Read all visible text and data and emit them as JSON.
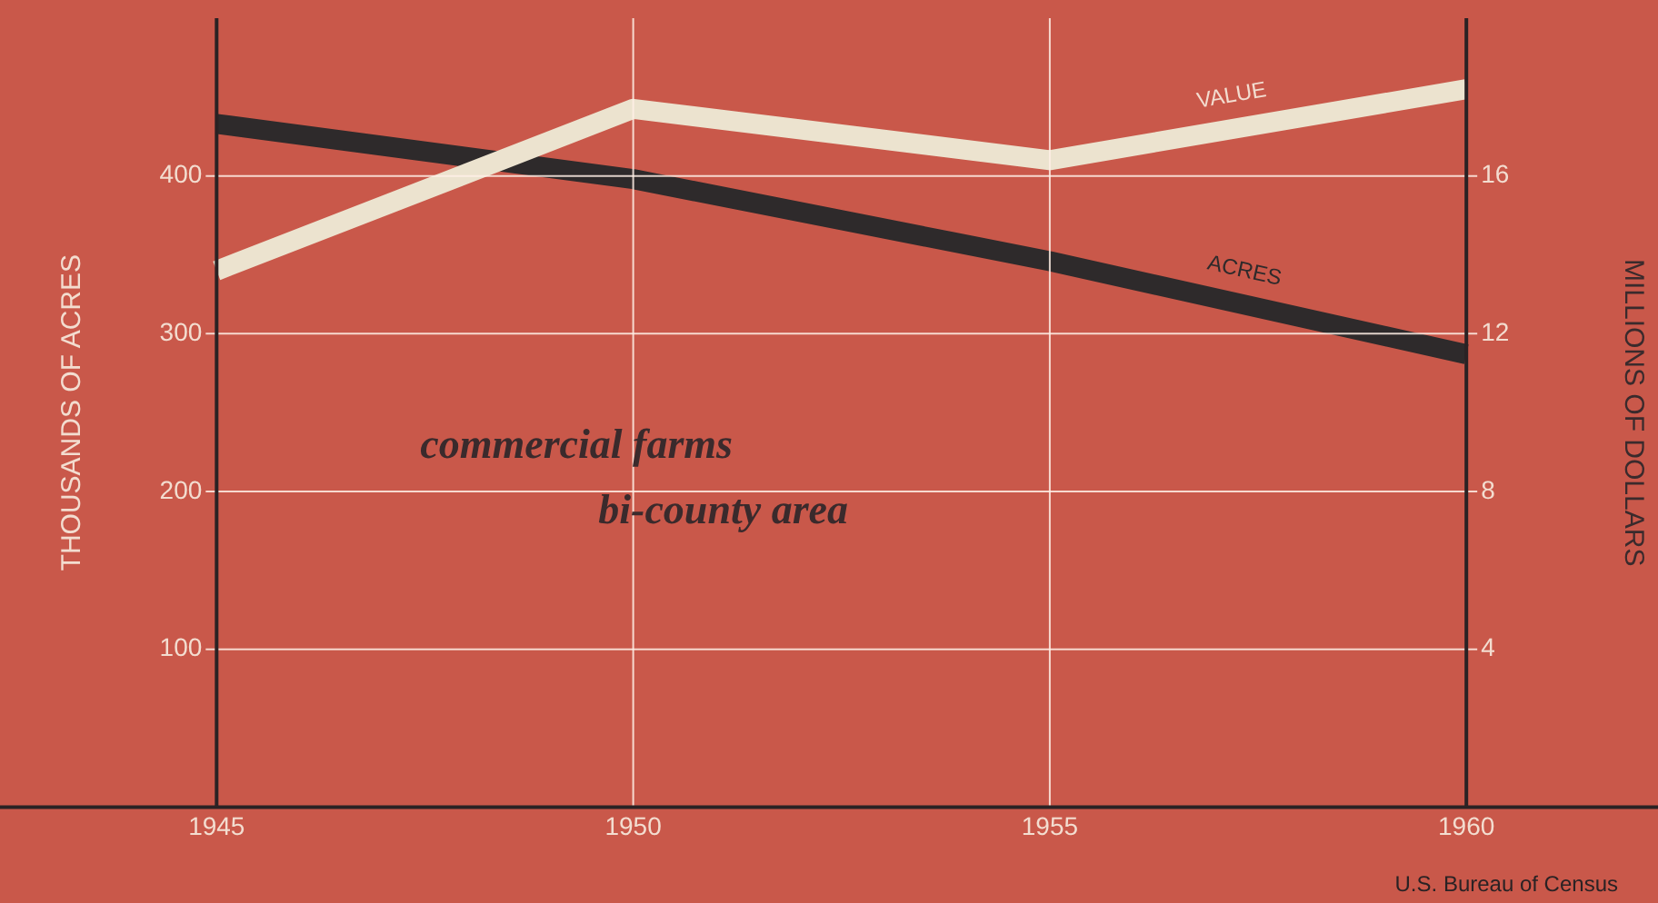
{
  "chart_data": {
    "type": "line",
    "ylabel": "THOUSANDS OF ACRES",
    "y2label": "MILLIONS OF DOLLARS",
    "x": [
      1945,
      1950,
      1955,
      1960
    ],
    "xlim": [
      1942.4,
      1962.3
    ],
    "xticks": [
      1945,
      1950,
      1955,
      1960
    ],
    "ylim": [
      0,
      500
    ],
    "yticks": [
      100,
      200,
      300,
      400
    ],
    "y2lim": [
      0,
      20
    ],
    "y2ticks": [
      4,
      8,
      12,
      16
    ],
    "series": [
      {
        "name": "VALUE",
        "color": "#ece3cf",
        "values": [
          13.6,
          17.7,
          16.4,
          18.2
        ],
        "axis": "y2"
      },
      {
        "name": "ACRES",
        "color": "#2e2a2b",
        "values": [
          433,
          398,
          346,
          287
        ]
      }
    ],
    "grid": true,
    "legend": false,
    "marker": "none",
    "line_style": "solid",
    "annotations": [
      "commercial farms",
      "bi-county area",
      "U.S. Bureau of Census"
    ]
  }
}
